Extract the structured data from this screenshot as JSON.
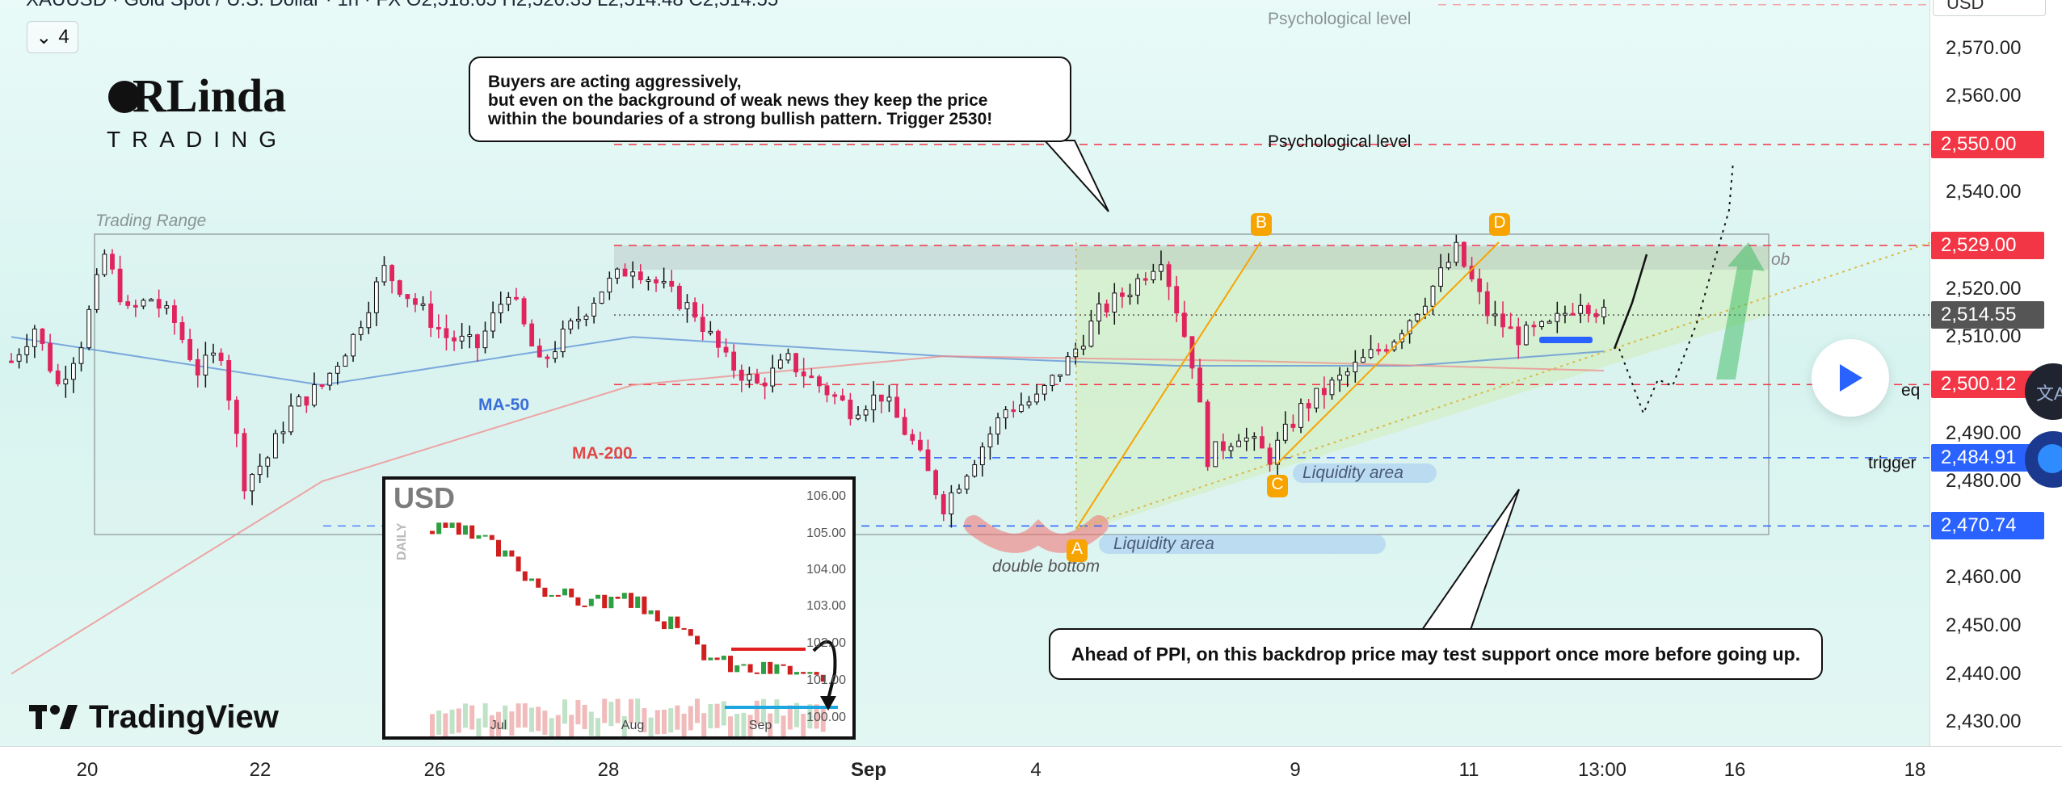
{
  "header": {
    "symbol_line": "XAUUSD · Gold Spot / U.S. Dollar · 1h · FX  O2,518.65 H2,520.35 L2,514.48 C2,514.55",
    "legend_count": "4",
    "chevron_icon": "chevron-down-icon"
  },
  "branding": {
    "logo_text_top": "RLinda",
    "logo_text_bottom": "TRADING",
    "watermark": "TradingView"
  },
  "currency_selector": "USD",
  "annotations": {
    "trading_range": "Trading Range",
    "ma50": "MA-50",
    "ma200": "MA-200",
    "psych_level_1": "Psychological level",
    "psych_level_2": "Psychological level",
    "liquidity_area_1": "Liquidity area",
    "liquidity_area_2": "Liquidity area",
    "double_bottom": "double bottom",
    "ob": "ob",
    "eq": "eq",
    "trigger": "trigger",
    "point_a": "A",
    "point_b": "B",
    "point_c": "C",
    "point_d": "D"
  },
  "callouts": {
    "top_line1": "Buyers are acting aggressively,",
    "top_line2": "but even on the background of weak news they keep the price",
    "top_line3": "within the boundaries of a strong bullish pattern. Trigger 2530!",
    "bottom": "Ahead of PPI, on this backdrop price may test support once more before going up."
  },
  "colors": {
    "bull": "#089981",
    "bear": "#e0245e",
    "accent_red": "#f23645",
    "accent_blue": "#2962ff",
    "ma50": "#5b8fd6",
    "ma200": "#f08b8b",
    "pattern_orange": "#f7a400",
    "current_price": "#555555"
  },
  "chart_data": {
    "type": "candlestick",
    "title": "XAUUSD · Gold Spot / U.S. Dollar · 1h · FX",
    "ylim": [
      2425,
      2580
    ],
    "y_ticks": [
      "2,570.00",
      "2,560.00",
      "2,540.00",
      "2,520.00",
      "2,510.00",
      "2,490.00",
      "2,480.00",
      "2,460.00",
      "2,450.00",
      "2,440.00",
      "2,430.00"
    ],
    "x_ticks": [
      "20",
      "22",
      "26",
      "28",
      "Sep",
      "4",
      "9",
      "11",
      "13:00",
      "16",
      "18"
    ],
    "price_levels": [
      {
        "label": "2,550.00",
        "value": 2550,
        "color": "#f23645"
      },
      {
        "label": "2,529.00",
        "value": 2529,
        "color": "#f23645"
      },
      {
        "label": "2,514.55",
        "value": 2514.55,
        "color": "#555555"
      },
      {
        "label": "2,500.12",
        "value": 2500.12,
        "color": "#f23645"
      },
      {
        "label": "2,484.91",
        "value": 2484.91,
        "color": "#2962ff"
      },
      {
        "label": "2,470.74",
        "value": 2470.74,
        "color": "#2962ff"
      }
    ],
    "close_path": [
      [
        0,
        2505
      ],
      [
        3,
        2512
      ],
      [
        6,
        2500
      ],
      [
        9,
        2509
      ],
      [
        12,
        2527
      ],
      [
        15,
        2515
      ],
      [
        18,
        2518
      ],
      [
        21,
        2513
      ],
      [
        24,
        2503
      ],
      [
        27,
        2507
      ],
      [
        30,
        2480
      ],
      [
        33,
        2485
      ],
      [
        36,
        2495
      ],
      [
        40,
        2500
      ],
      [
        44,
        2510
      ],
      [
        48,
        2524
      ],
      [
        52,
        2517
      ],
      [
        56,
        2510
      ],
      [
        60,
        2508
      ],
      [
        64,
        2520
      ],
      [
        68,
        2504
      ],
      [
        72,
        2512
      ],
      [
        76,
        2520
      ],
      [
        80,
        2525
      ],
      [
        84,
        2520
      ],
      [
        88,
        2515
      ],
      [
        92,
        2505
      ],
      [
        96,
        2500
      ],
      [
        100,
        2505
      ],
      [
        104,
        2500
      ],
      [
        108,
        2495
      ],
      [
        112,
        2498
      ],
      [
        116,
        2488
      ],
      [
        120,
        2475
      ],
      [
        124,
        2485
      ],
      [
        128,
        2495
      ],
      [
        132,
        2497
      ],
      [
        136,
        2505
      ],
      [
        140,
        2515
      ],
      [
        144,
        2520
      ],
      [
        148,
        2527
      ],
      [
        152,
        2505
      ],
      [
        154,
        2485
      ],
      [
        158,
        2490
      ],
      [
        162,
        2485
      ],
      [
        166,
        2495
      ],
      [
        170,
        2500
      ],
      [
        174,
        2505
      ],
      [
        178,
        2510
      ],
      [
        182,
        2518
      ],
      [
        186,
        2528
      ],
      [
        190,
        2515
      ],
      [
        194,
        2510
      ],
      [
        198,
        2512
      ],
      [
        202,
        2518
      ],
      [
        205,
        2514.55
      ]
    ],
    "ma50": [
      [
        0,
        2510
      ],
      [
        40,
        2500
      ],
      [
        80,
        2510
      ],
      [
        120,
        2506
      ],
      [
        150,
        2504
      ],
      [
        180,
        2504
      ],
      [
        205,
        2507
      ]
    ],
    "ma200": [
      [
        0,
        2440
      ],
      [
        40,
        2480
      ],
      [
        80,
        2500
      ],
      [
        120,
        2506
      ],
      [
        160,
        2505
      ],
      [
        205,
        2503
      ]
    ]
  },
  "inset": {
    "title": "USD",
    "side_label": "DAILY",
    "y_ticks": [
      "106.00",
      "105.00",
      "104.00",
      "103.00",
      "102.00",
      "101.00",
      "100.00"
    ],
    "x_ticks": [
      "Jul",
      "Aug",
      "Sep"
    ]
  }
}
